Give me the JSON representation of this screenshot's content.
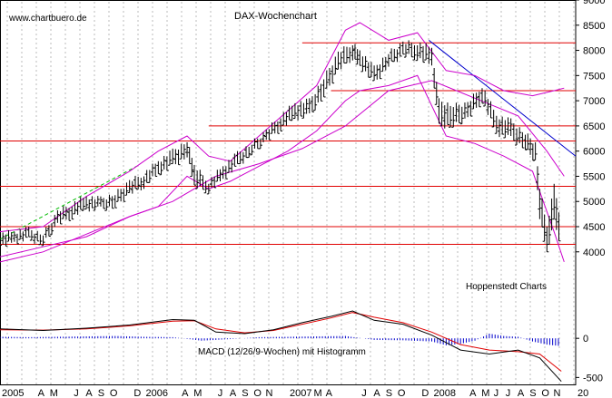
{
  "chart_data": {
    "type": "candlestick",
    "title": "DAX-Wochenchart",
    "watermark": "www.chartbuero.de",
    "source_note": "Hoppenstedt Charts",
    "macd_label": "MACD (12/26/9-Wochen) mit Histogramm",
    "price_axis": {
      "ylim": [
        3600,
        9000
      ],
      "ticks": [
        "9000",
        "8500",
        "8000",
        "7500",
        "7000",
        "6500",
        "6000",
        "5500",
        "5000",
        "4500",
        "4000"
      ],
      "tick_values": [
        9000,
        8500,
        8000,
        7500,
        7000,
        6500,
        6000,
        5500,
        5000,
        4500,
        4000
      ]
    },
    "macd_axis": {
      "ylim": [
        -600,
        500
      ],
      "ticks": [
        "0",
        "-500"
      ],
      "tick_values": [
        0,
        -500
      ]
    },
    "x_axis": {
      "range": [
        2005.0,
        2009.0
      ],
      "labels": [
        {
          "t": "2005",
          "v": 2005.0
        },
        {
          "t": "A",
          "v": 2005.25
        },
        {
          "t": "M",
          "v": 2005.333
        },
        {
          "t": "J",
          "v": 2005.5
        },
        {
          "t": "A",
          "v": 2005.583
        },
        {
          "t": "S",
          "v": 2005.667
        },
        {
          "t": "O",
          "v": 2005.75
        },
        {
          "t": "D",
          "v": 2005.917
        },
        {
          "t": "2006",
          "v": 2006.0
        },
        {
          "t": "A",
          "v": 2006.25
        },
        {
          "t": "M",
          "v": 2006.333
        },
        {
          "t": "J",
          "v": 2006.5
        },
        {
          "t": "A",
          "v": 2006.583
        },
        {
          "t": "S",
          "v": 2006.667
        },
        {
          "t": "O",
          "v": 2006.75
        },
        {
          "t": "N",
          "v": 2006.833
        },
        {
          "t": "2007",
          "v": 2007.0
        },
        {
          "t": "M",
          "v": 2007.167
        },
        {
          "t": "A",
          "v": 2007.25
        },
        {
          "t": "J",
          "v": 2007.5
        },
        {
          "t": "A",
          "v": 2007.583
        },
        {
          "t": "S",
          "v": 2007.667
        },
        {
          "t": "O",
          "v": 2007.75
        },
        {
          "t": "D",
          "v": 2007.917
        },
        {
          "t": "2008",
          "v": 2008.0
        },
        {
          "t": "A",
          "v": 2008.25
        },
        {
          "t": "M",
          "v": 2008.333
        },
        {
          "t": "J",
          "v": 2008.417
        },
        {
          "t": "J",
          "v": 2008.5
        },
        {
          "t": "A",
          "v": 2008.583
        },
        {
          "t": "S",
          "v": 2008.667
        },
        {
          "t": "O",
          "v": 2008.75
        },
        {
          "t": "N",
          "v": 2008.833
        },
        {
          "t": "20",
          "v": 2009.0
        }
      ]
    },
    "horizontal_levels": [
      {
        "value": 8150,
        "x_start": 2007.1
      },
      {
        "value": 7200,
        "x_start": 2007.3
      },
      {
        "value": 6500,
        "x_start": 2006.45
      },
      {
        "value": 6200,
        "x_start": 2005.0
      },
      {
        "value": 5300,
        "x_start": 2005.0
      },
      {
        "value": 4500,
        "x_start": 2005.0
      },
      {
        "value": 4150,
        "x_start": 2005.0
      }
    ],
    "trendline": {
      "x1": 2007.98,
      "y1": 8200,
      "x2": 2009.0,
      "y2": 5900
    },
    "support_line": {
      "x1": 2005.0,
      "y1": 4250,
      "x2": 2005.95,
      "y2": 5700
    },
    "price_series": {
      "x": [
        2005.0,
        2005.1,
        2005.2,
        2005.3,
        2005.4,
        2005.5,
        2005.6,
        2005.7,
        2005.8,
        2005.9,
        2006.0,
        2006.1,
        2006.2,
        2006.3,
        2006.35,
        2006.45,
        2006.55,
        2006.65,
        2006.75,
        2006.85,
        2006.95,
        2007.05,
        2007.15,
        2007.25,
        2007.35,
        2007.45,
        2007.5,
        2007.6,
        2007.7,
        2007.8,
        2007.9,
        2008.0,
        2008.05,
        2008.15,
        2008.25,
        2008.35,
        2008.45,
        2008.55,
        2008.65,
        2008.72,
        2008.75,
        2008.8,
        2008.85,
        2008.9
      ],
      "values": [
        4200,
        4300,
        4350,
        4250,
        4700,
        4850,
        5000,
        4950,
        5050,
        5300,
        5450,
        5700,
        5900,
        6100,
        5500,
        5300,
        5600,
        5850,
        6050,
        6300,
        6600,
        6800,
        6900,
        7300,
        7800,
        8000,
        7850,
        7500,
        7850,
        8050,
        8000,
        7900,
        6800,
        6700,
        6800,
        7200,
        6500,
        6450,
        6200,
        6000,
        5000,
        4200,
        5000,
        4300
      ],
      "ranges": [
        [
          4100,
          4350
        ],
        [
          4200,
          4400
        ],
        [
          4250,
          4450
        ],
        [
          4150,
          4350
        ],
        [
          4550,
          4800
        ],
        [
          4700,
          4950
        ],
        [
          4850,
          5100
        ],
        [
          4850,
          5050
        ],
        [
          4900,
          5150
        ],
        [
          5150,
          5400
        ],
        [
          5300,
          5550
        ],
        [
          5550,
          5800
        ],
        [
          5700,
          6000
        ],
        [
          5900,
          6200
        ],
        [
          5300,
          5700
        ],
        [
          5200,
          5400
        ],
        [
          5450,
          5700
        ],
        [
          5700,
          5950
        ],
        [
          5950,
          6150
        ],
        [
          6200,
          6400
        ],
        [
          6450,
          6700
        ],
        [
          6650,
          6950
        ],
        [
          6700,
          7000
        ],
        [
          7100,
          7450
        ],
        [
          7600,
          7950
        ],
        [
          7850,
          8150
        ],
        [
          7700,
          8000
        ],
        [
          7350,
          7650
        ],
        [
          7700,
          7950
        ],
        [
          7900,
          8150
        ],
        [
          7850,
          8150
        ],
        [
          7700,
          8050
        ],
        [
          6500,
          7000
        ],
        [
          6500,
          6900
        ],
        [
          6650,
          6950
        ],
        [
          7000,
          7300
        ],
        [
          6350,
          6700
        ],
        [
          6250,
          6600
        ],
        [
          6050,
          6350
        ],
        [
          5800,
          6150
        ],
        [
          4700,
          5300
        ],
        [
          4000,
          4500
        ],
        [
          4600,
          5300
        ],
        [
          4100,
          4600
        ]
      ]
    },
    "bollinger_upper": {
      "x": [
        2005.0,
        2005.3,
        2005.6,
        2005.9,
        2006.1,
        2006.3,
        2006.45,
        2006.6,
        2006.8,
        2007.0,
        2007.2,
        2007.4,
        2007.5,
        2007.7,
        2007.9,
        2008.1,
        2008.3,
        2008.5,
        2008.7,
        2008.85,
        2008.92
      ],
      "values": [
        4400,
        4500,
        5100,
        5600,
        6000,
        6300,
        5900,
        5800,
        6300,
        6800,
        7300,
        8400,
        8550,
        8200,
        8350,
        7600,
        7500,
        7200,
        7100,
        7200,
        7250
      ]
    },
    "bollinger_lower": {
      "x": [
        2005.0,
        2005.3,
        2005.6,
        2005.9,
        2006.1,
        2006.3,
        2006.45,
        2006.6,
        2006.8,
        2007.0,
        2007.2,
        2007.4,
        2007.5,
        2007.7,
        2007.9,
        2008.1,
        2008.3,
        2008.5,
        2008.7,
        2008.85,
        2008.92
      ],
      "values": [
        3800,
        4000,
        4350,
        4700,
        4900,
        5500,
        5250,
        5400,
        5700,
        6000,
        6400,
        7000,
        7200,
        7300,
        7500,
        6300,
        6150,
        5900,
        5600,
        4400,
        3800
      ]
    },
    "moving_average": {
      "x": [
        2005.0,
        2005.3,
        2005.6,
        2005.9,
        2006.2,
        2006.5,
        2006.8,
        2007.1,
        2007.4,
        2007.7,
        2008.0,
        2008.3,
        2008.6,
        2008.8,
        2008.92
      ],
      "values": [
        3900,
        4100,
        4300,
        4700,
        5000,
        5500,
        5750,
        6050,
        6500,
        7200,
        7400,
        7050,
        6700,
        6000,
        5500
      ]
    },
    "macd_line": {
      "x": [
        2005.0,
        2005.3,
        2005.6,
        2005.9,
        2006.2,
        2006.35,
        2006.5,
        2006.7,
        2006.9,
        2007.1,
        2007.3,
        2007.45,
        2007.6,
        2007.8,
        2008.0,
        2008.2,
        2008.4,
        2008.6,
        2008.75,
        2008.9
      ],
      "values": [
        120,
        100,
        130,
        170,
        240,
        230,
        80,
        60,
        110,
        200,
        280,
        350,
        230,
        180,
        40,
        -150,
        -200,
        -150,
        -250,
        -550
      ]
    },
    "signal_line": {
      "x": [
        2005.0,
        2005.3,
        2005.6,
        2005.9,
        2006.2,
        2006.35,
        2006.5,
        2006.7,
        2006.9,
        2007.1,
        2007.3,
        2007.45,
        2007.6,
        2007.8,
        2008.0,
        2008.2,
        2008.4,
        2008.6,
        2008.75,
        2008.9
      ],
      "values": [
        110,
        105,
        120,
        160,
        220,
        225,
        120,
        70,
        100,
        180,
        260,
        330,
        270,
        200,
        80,
        -80,
        -150,
        -170,
        -200,
        -420
      ]
    },
    "histogram": {
      "x": [
        2005.0,
        2005.2,
        2005.4,
        2005.6,
        2005.8,
        2006.0,
        2006.2,
        2006.4,
        2006.6,
        2006.8,
        2007.0,
        2007.2,
        2007.4,
        2007.6,
        2007.8,
        2008.0,
        2008.1,
        2008.2,
        2008.3,
        2008.4,
        2008.5,
        2008.6,
        2008.7,
        2008.8,
        2008.9
      ],
      "values": [
        20,
        15,
        20,
        25,
        30,
        20,
        15,
        -30,
        -10,
        15,
        20,
        25,
        30,
        -20,
        -25,
        -40,
        -90,
        -70,
        -30,
        60,
        30,
        20,
        -40,
        -80,
        -100
      ]
    }
  }
}
